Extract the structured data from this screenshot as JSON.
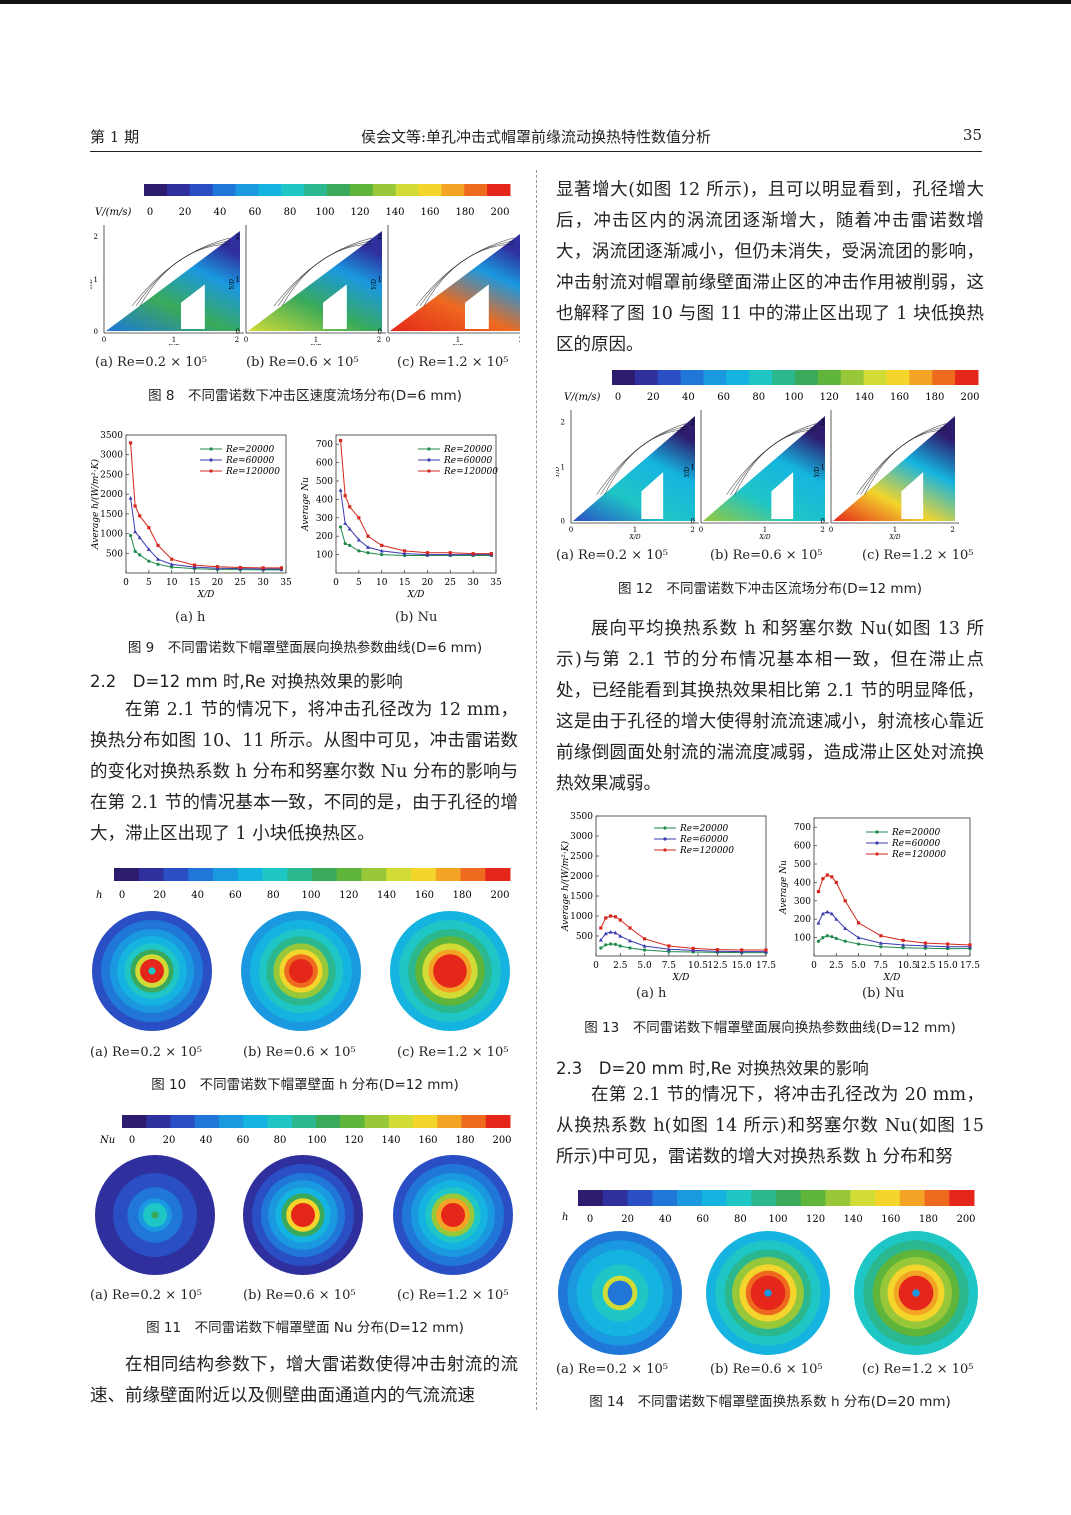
{
  "header": {
    "issue": "第 1 期",
    "title": "侯会文等:单孔冲击式帽罩前缘流动换热特性数值分析",
    "page": "35"
  },
  "fig8": {
    "unit": "V/(m/s)",
    "ticks": [
      "0",
      "20",
      "40",
      "60",
      "80",
      "100",
      "120",
      "140",
      "160",
      "180",
      "200"
    ],
    "ylabel": "Y/D",
    "xlabel": "X/D",
    "subcaps": [
      "(a) Re=0.2 × 10⁵",
      "(b) Re=0.6 × 10⁵",
      "(c) Re=1.2 × 10⁵"
    ],
    "caption": "图 8　不同雷诺数下冲击区速度流场分布(D=6 mm)"
  },
  "fig9": {
    "subcaps": [
      "(a) h",
      "(b) Nu"
    ],
    "caption": "图 9　不同雷诺数下帽罩壁面展向换热参数曲线(D=6 mm)",
    "ylabel_a": "Average h/(W/m²·K)",
    "ylabel_b": "Average Nu",
    "xlabel": "X/D",
    "legend": [
      "Re=20000",
      "Re=60000",
      "Re=120000"
    ]
  },
  "sec22": {
    "title": "2.2　D=12 mm 时,Re 对换热效果的影响",
    "body": "在第 2.1 节的情况下，将冲击孔径改为 12 mm，换热分布如图 10、11 所示。从图中可见，冲击雷诺数的变化对换热系数 h 分布和努塞尔数 Nu 分布的影响与在第 2.1 节的情况基本一致，不同的是，由于孔径的增大，滞止区出现了 1 小块低换热区。"
  },
  "fig10": {
    "unit": "h",
    "ticks": [
      "0",
      "20",
      "40",
      "60",
      "80",
      "100",
      "120",
      "140",
      "160",
      "180",
      "200"
    ],
    "subcaps": [
      "(a) Re=0.2 × 10⁵",
      "(b) Re=0.6 × 10⁵",
      "(c) Re=1.2 × 10⁵"
    ],
    "caption": "图 10　不同雷诺数下帽罩壁面 h 分布(D=12 mm)"
  },
  "fig11": {
    "unit": "Nu",
    "ticks": [
      "0",
      "20",
      "40",
      "60",
      "80",
      "100",
      "120",
      "140",
      "160",
      "180",
      "200"
    ],
    "subcaps": [
      "(a) Re=0.2 × 10⁵",
      "(b) Re=0.6 × 10⁵",
      "(c) Re=1.2 × 10⁵"
    ],
    "caption": "图 11　不同雷诺数下帽罩壁面 Nu 分布(D=12 mm)"
  },
  "left_bottom": "在相同结构参数下，增大雷诺数使得冲击射流的流速、前缘壁面附近以及侧壁曲面通道内的气流流速",
  "right_top": "显著增大(如图 12 所示)，且可以明显看到，孔径增大后，冲击区内的涡流团逐渐增大，随着冲击雷诺数增大，涡流团逐渐减小，但仍未消失，受涡流团的影响，冲击射流对帽罩前缘壁面滞止区的冲击作用被削弱，这也解释了图 10 与图 11 中的滞止区出现了 1 块低换热区的原因。",
  "fig12": {
    "unit": "V/(m/s)",
    "ticks": [
      "0",
      "20",
      "40",
      "60",
      "80",
      "100",
      "120",
      "140",
      "160",
      "180",
      "200"
    ],
    "subcaps": [
      "(a) Re=0.2 × 10⁵",
      "(b) Re=0.6 × 10⁵",
      "(c) Re=1.2 × 10⁵"
    ],
    "caption": "图 12　不同雷诺数下冲击区流场分布(D=12 mm)"
  },
  "right_mid": "展向平均换热系数 h 和努塞尔数 Nu(如图 13 所示)与第 2.1 节的分布情况基本相一致，但在滞止点处，已经能看到其换热效果相比第 2.1 节的明显降低，这是由于孔径的增大使得射流流速减小，射流核心靠近前缘倒圆面处射流的湍流度减弱，造成滞止区处对流换热效果减弱。",
  "fig13": {
    "subcaps": [
      "(a) h",
      "(b) Nu"
    ],
    "caption": "图 13　不同雷诺数下帽罩壁面展向换热参数曲线(D=12 mm)",
    "ylabel_a": "Average h/(W/m²·K)",
    "ylabel_b": "Average Nu",
    "xlabel": "X/D",
    "legend": [
      "Re=20000",
      "Re=60000",
      "Re=120000"
    ]
  },
  "sec23": {
    "title": "2.3　D=20 mm 时,Re 对换热效果的影响",
    "body": "在第 2.1 节的情况下，将冲击孔径改为 20 mm，从换热系数 h(如图 14 所示)和努塞尔数 Nu(如图 15 所示)中可见，雷诺数的增大对换热系数 h 分布和努"
  },
  "fig14": {
    "unit": "h",
    "ticks": [
      "0",
      "20",
      "40",
      "60",
      "80",
      "100",
      "120",
      "140",
      "160",
      "180",
      "200"
    ],
    "subcaps": [
      "(a) Re=0.2 × 10⁵",
      "(b) Re=0.6 × 10⁵",
      "(c) Re=1.2 × 10⁵"
    ],
    "caption": "图 14　不同雷诺数下帽罩壁面换热系数 h 分布(D=20 mm)"
  },
  "chart_data": [
    {
      "type": "line",
      "title": "(a) h",
      "xlabel": "X/D",
      "ylabel": "Average h/(W/m²·K)",
      "xlim": [
        0,
        35
      ],
      "ylim": [
        0,
        3500
      ],
      "x": [
        1,
        2,
        3,
        5,
        7,
        10,
        15,
        20,
        25,
        30,
        34
      ],
      "series": [
        {
          "name": "Re=20000",
          "values": [
            950,
            550,
            460,
            300,
            220,
            150,
            110,
            90,
            85,
            80,
            80
          ]
        },
        {
          "name": "Re=60000",
          "values": [
            1900,
            1050,
            900,
            600,
            350,
            220,
            150,
            120,
            110,
            100,
            100
          ]
        },
        {
          "name": "Re=120000",
          "values": [
            3300,
            1700,
            1450,
            1150,
            700,
            350,
            200,
            160,
            140,
            130,
            130
          ]
        }
      ]
    },
    {
      "type": "line",
      "title": "(b) Nu",
      "xlabel": "X/D",
      "ylabel": "Average Nu",
      "xlim": [
        0,
        35
      ],
      "ylim": [
        0,
        750
      ],
      "x": [
        1,
        2,
        3,
        5,
        7,
        10,
        15,
        20,
        25,
        30,
        34
      ],
      "series": [
        {
          "name": "Re=20000",
          "values": [
            250,
            160,
            150,
            120,
            110,
            100,
            95,
            95,
            95,
            95,
            95
          ]
        },
        {
          "name": "Re=60000",
          "values": [
            450,
            270,
            240,
            180,
            140,
            120,
            105,
            100,
            100,
            100,
            100
          ]
        },
        {
          "name": "Re=120000",
          "values": [
            720,
            420,
            360,
            300,
            200,
            150,
            120,
            110,
            110,
            105,
            105
          ]
        }
      ]
    },
    {
      "type": "line",
      "title": "(a) h",
      "xlabel": "X/D",
      "ylabel": "Average h/(W/m²·K)",
      "xlim": [
        0,
        17.5
      ],
      "ylim": [
        0,
        3500
      ],
      "x": [
        0.5,
        1,
        1.5,
        2,
        2.5,
        3.5,
        5,
        7.5,
        10,
        12.5,
        15,
        17.5
      ],
      "series": [
        {
          "name": "Re=20000",
          "values": [
            200,
            280,
            300,
            290,
            250,
            200,
            150,
            110,
            100,
            90,
            85,
            85
          ]
        },
        {
          "name": "Re=60000",
          "values": [
            400,
            560,
            600,
            580,
            500,
            380,
            250,
            170,
            140,
            120,
            110,
            110
          ]
        },
        {
          "name": "Re=120000",
          "values": [
            700,
            950,
            1000,
            980,
            900,
            700,
            430,
            250,
            190,
            160,
            150,
            150
          ]
        }
      ]
    },
    {
      "type": "line",
      "title": "(b) Nu",
      "xlabel": "X/D",
      "ylabel": "Average Nu",
      "xlim": [
        0,
        17.5
      ],
      "ylim": [
        0,
        750
      ],
      "x": [
        0.5,
        1,
        1.5,
        2,
        2.5,
        3.5,
        5,
        7.5,
        10,
        12.5,
        15,
        17.5
      ],
      "series": [
        {
          "name": "Re=20000",
          "values": [
            80,
            100,
            110,
            105,
            95,
            80,
            65,
            50,
            45,
            42,
            40,
            40
          ]
        },
        {
          "name": "Re=60000",
          "values": [
            180,
            230,
            240,
            230,
            200,
            150,
            100,
            70,
            60,
            55,
            50,
            50
          ]
        },
        {
          "name": "Re=120000",
          "values": [
            350,
            420,
            440,
            430,
            400,
            300,
            180,
            110,
            85,
            70,
            65,
            60
          ]
        }
      ]
    }
  ]
}
